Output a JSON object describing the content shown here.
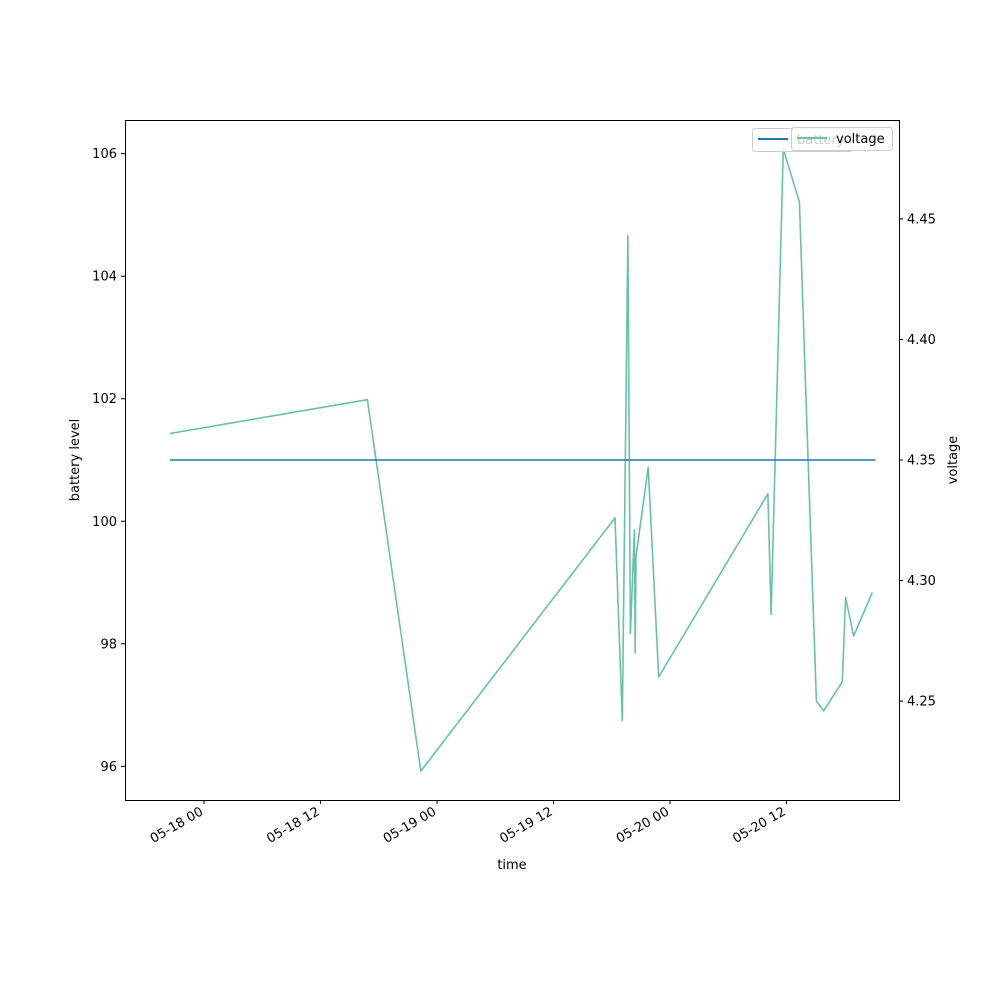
{
  "chart_data": {
    "type": "line",
    "title": "",
    "xlabel": "time",
    "ylabel_left": "battery level",
    "ylabel_right": "voltage",
    "x_ticks": [
      "05-18 00",
      "05-18 12",
      "05-19 00",
      "05-19 12",
      "05-20 00",
      "05-20 12"
    ],
    "left_axis": {
      "ticks": [
        96,
        98,
        100,
        102,
        104,
        106
      ],
      "ylim": [
        95.45,
        106.55
      ]
    },
    "right_axis": {
      "ticks": [
        4.25,
        4.3,
        4.35,
        4.4,
        4.45
      ],
      "ylim": [
        4.209,
        4.491
      ]
    },
    "grid": false,
    "series": [
      {
        "name": "battery",
        "axis": "left",
        "color": "#1f77b4",
        "points": [
          {
            "x": "05-17 20:30",
            "y": 101
          },
          {
            "x": "05-20 21:10",
            "y": 101
          }
        ]
      },
      {
        "name": "voltage",
        "axis": "right",
        "color": "#66c2a5",
        "points": [
          {
            "x": "05-17 20:30",
            "y": 4.361
          },
          {
            "x": "05-18 16:50",
            "y": 4.375
          },
          {
            "x": "05-18 22:20",
            "y": 4.221
          },
          {
            "x": "05-19 18:20",
            "y": 4.326
          },
          {
            "x": "05-19 19:05",
            "y": 4.242
          },
          {
            "x": "05-19 19:40",
            "y": 4.443
          },
          {
            "x": "05-19 19:55",
            "y": 4.278
          },
          {
            "x": "05-19 20:20",
            "y": 4.321
          },
          {
            "x": "05-19 20:25",
            "y": 4.27
          },
          {
            "x": "05-19 20:30",
            "y": 4.31
          },
          {
            "x": "05-19 21:45",
            "y": 4.347
          },
          {
            "x": "05-19 22:50",
            "y": 4.26
          },
          {
            "x": "05-20 10:05",
            "y": 4.336
          },
          {
            "x": "05-20 10:25",
            "y": 4.286
          },
          {
            "x": "05-20 11:40",
            "y": 4.479
          },
          {
            "x": "05-20 13:20",
            "y": 4.457
          },
          {
            "x": "05-20 14:05",
            "y": 4.367
          },
          {
            "x": "05-20 15:05",
            "y": 4.25
          },
          {
            "x": "05-20 15:50",
            "y": 4.246
          },
          {
            "x": "05-20 17:45",
            "y": 4.258
          },
          {
            "x": "05-20 18:05",
            "y": 4.293
          },
          {
            "x": "05-20 18:55",
            "y": 4.277
          },
          {
            "x": "05-20 20:50",
            "y": 4.295
          }
        ]
      }
    ],
    "legends": [
      {
        "label": "battery",
        "color": "#1f77b4",
        "placement": "upper-right"
      },
      {
        "label": "voltage",
        "color": "#66c2a5",
        "placement": "upper-right"
      }
    ]
  }
}
